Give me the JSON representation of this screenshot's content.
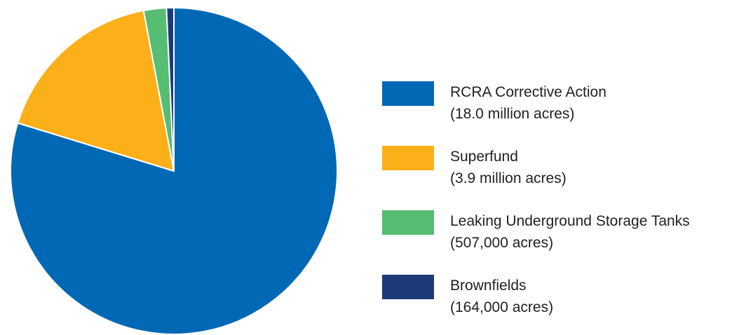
{
  "chart_data": {
    "type": "pie",
    "title": "",
    "start_angle_deg": 0,
    "direction": "clockwise",
    "legend_position": "right",
    "slices": [
      {
        "label": "RCRA Corrective Action",
        "value_text": "(18.0 million acres)",
        "value": 18000000,
        "color": "#0068b4"
      },
      {
        "label": "Superfund",
        "value_text": "(3.9 million acres)",
        "value": 3900000,
        "color": "#fbb01a"
      },
      {
        "label": "Leaking Underground Storage Tanks",
        "value_text": "(507,000 acres)",
        "value": 507000,
        "color": "#56bd72"
      },
      {
        "label": "Brownfields",
        "value_text": "(164,000 acres)",
        "value": 164000,
        "color": "#1c3a78"
      }
    ]
  }
}
